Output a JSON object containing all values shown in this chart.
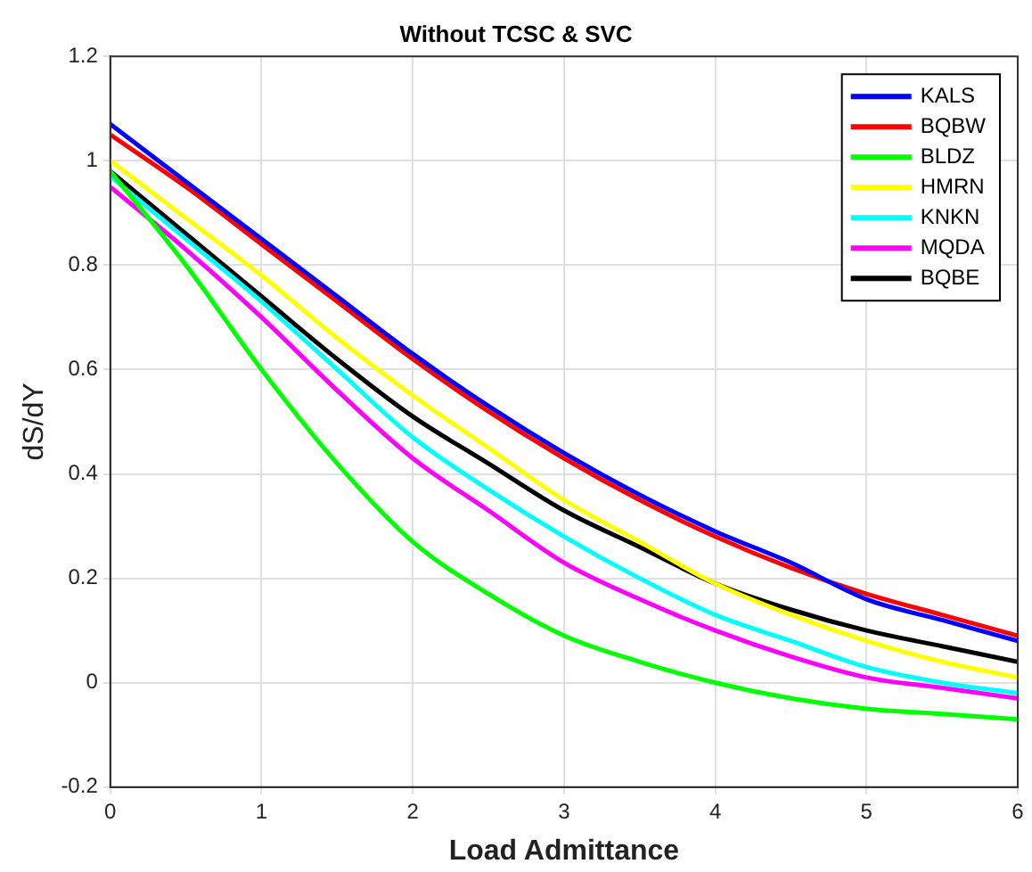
{
  "chart_data": {
    "type": "line",
    "title": "Without TCSC & SVC",
    "xlabel": "Load Admittance",
    "ylabel": "dS/dY",
    "x": [
      0,
      0.5,
      1,
      1.5,
      2,
      2.5,
      3,
      3.5,
      4,
      4.5,
      5,
      5.5,
      6
    ],
    "series": [
      {
        "name": "KALS",
        "color": "#0000ff",
        "values": [
          1.07,
          0.96,
          0.85,
          0.74,
          0.63,
          0.53,
          0.44,
          0.36,
          0.29,
          0.23,
          0.16,
          0.12,
          0.08
        ]
      },
      {
        "name": "BQBW",
        "color": "#ff0000",
        "values": [
          1.05,
          0.95,
          0.84,
          0.73,
          0.62,
          0.52,
          0.43,
          0.35,
          0.28,
          0.22,
          0.17,
          0.13,
          0.09
        ]
      },
      {
        "name": "BLDZ",
        "color": "#00ff00",
        "values": [
          0.98,
          0.8,
          0.6,
          0.42,
          0.27,
          0.17,
          0.09,
          0.04,
          0.0,
          -0.03,
          -0.05,
          -0.06,
          -0.07
        ]
      },
      {
        "name": "HMRN",
        "color": "#ffff00",
        "values": [
          1.0,
          0.89,
          0.78,
          0.66,
          0.55,
          0.45,
          0.35,
          0.27,
          0.19,
          0.13,
          0.08,
          0.04,
          0.01
        ]
      },
      {
        "name": "KNKN",
        "color": "#00ffff",
        "values": [
          0.97,
          0.85,
          0.73,
          0.6,
          0.47,
          0.37,
          0.28,
          0.2,
          0.13,
          0.08,
          0.03,
          0.0,
          -0.02
        ]
      },
      {
        "name": "MQDA",
        "color": "#ff00ff",
        "values": [
          0.95,
          0.83,
          0.7,
          0.56,
          0.43,
          0.33,
          0.23,
          0.16,
          0.1,
          0.05,
          0.01,
          -0.01,
          -0.03
        ]
      },
      {
        "name": "BQBE",
        "color": "#000000",
        "values": [
          0.98,
          0.86,
          0.74,
          0.62,
          0.51,
          0.42,
          0.33,
          0.26,
          0.19,
          0.14,
          0.1,
          0.07,
          0.04
        ]
      }
    ],
    "xlim": [
      0,
      6
    ],
    "xticks": [
      0,
      1,
      2,
      3,
      4,
      5,
      6
    ],
    "ylim": [
      -0.2,
      1.2
    ],
    "yticks": [
      -0.2,
      0,
      0.2,
      0.4,
      0.6,
      0.8,
      1,
      1.2
    ],
    "grid": true,
    "legend": "top right",
    "marker": "none",
    "line_style": "solid"
  }
}
